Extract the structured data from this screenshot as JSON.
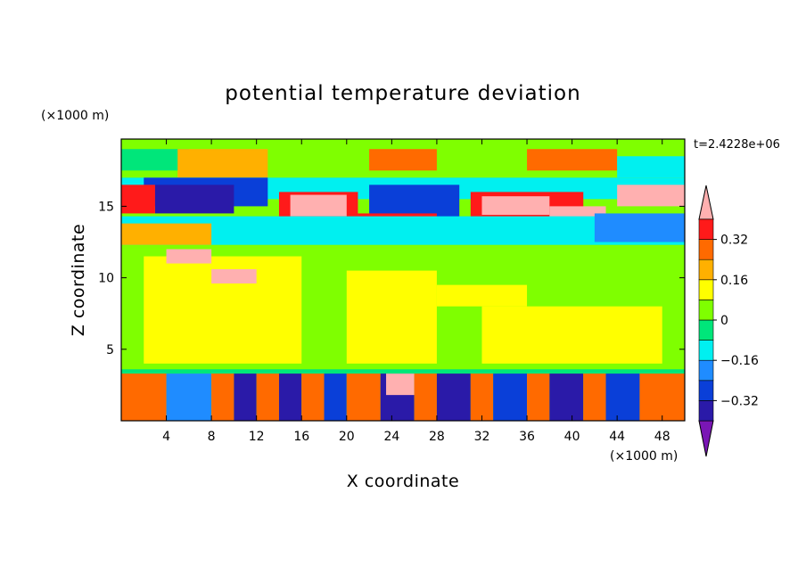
{
  "chart_data": {
    "type": "heatmap",
    "title": "potential temperature deviation",
    "xlabel": "X coordinate",
    "ylabel": "Z coordinate",
    "x_unit": "(×1000 m)",
    "y_unit": "(×1000 m)",
    "time_label": "t=2.4228e+06",
    "xlim": [
      0,
      50
    ],
    "ylim": [
      0,
      19.7
    ],
    "x_ticks": [
      4,
      8,
      12,
      16,
      20,
      24,
      28,
      32,
      36,
      40,
      44,
      48
    ],
    "y_ticks": [
      5,
      10,
      15
    ],
    "colorbar": {
      "levels": [
        -0.4,
        -0.32,
        -0.24,
        -0.16,
        -0.08,
        0,
        0.08,
        0.16,
        0.24,
        0.32,
        0.4
      ],
      "labels": [
        {
          "value": 0.32,
          "text": "0.32"
        },
        {
          "value": 0.16,
          "text": "0.16"
        },
        {
          "value": 0,
          "text": "0"
        },
        {
          "value": -0.16,
          "text": "−0.16"
        },
        {
          "value": -0.32,
          "text": "−0.32"
        }
      ],
      "colors_low_to_high": [
        "#7a16b5",
        "#2a1aa8",
        "#0a3fd8",
        "#1f8cff",
        "#00f0f0",
        "#00e67a",
        "#7fff00",
        "#ffff00",
        "#ffb000",
        "#ff6a00",
        "#ff1a1a",
        "#ffb0b0"
      ],
      "extend": "both"
    },
    "regions": [
      {
        "x0": 0,
        "x1": 50,
        "y0": 12,
        "y1": 19.7,
        "value": 0.04
      },
      {
        "x0": 0,
        "x1": 50,
        "y0": 3.3,
        "y1": 12,
        "value": 0.02
      },
      {
        "x0": 0,
        "x1": 50,
        "y0": 0,
        "y1": 3.3,
        "value": 0.02
      },
      {
        "x0": 2,
        "x1": 16,
        "y0": 4,
        "y1": 11.5,
        "value": 0.09
      },
      {
        "x0": 20,
        "x1": 28,
        "y0": 4,
        "y1": 10.5,
        "value": 0.09
      },
      {
        "x0": 28,
        "x1": 36,
        "y0": 8,
        "y1": 9.5,
        "value": 0.09
      },
      {
        "x0": 32,
        "x1": 48,
        "y0": 4,
        "y1": 8,
        "value": 0.09
      },
      {
        "x0": 0,
        "x1": 50,
        "y0": 3.3,
        "y1": 3.6,
        "value": -0.05
      },
      {
        "x0": 0,
        "x1": 6,
        "y0": 17.5,
        "y1": 19,
        "value": -0.06
      },
      {
        "x0": 5,
        "x1": 13,
        "y0": 17,
        "y1": 19,
        "value": 0.18
      },
      {
        "x0": 22,
        "x1": 28,
        "y0": 17.5,
        "y1": 19,
        "value": 0.25
      },
      {
        "x0": 36,
        "x1": 44,
        "y0": 17.5,
        "y1": 19,
        "value": 0.25
      },
      {
        "x0": 44,
        "x1": 50,
        "y0": 17,
        "y1": 18.5,
        "value": -0.1
      },
      {
        "x0": 0,
        "x1": 50,
        "y0": 15.5,
        "y1": 17,
        "value": -0.12
      },
      {
        "x0": 2,
        "x1": 13,
        "y0": 15,
        "y1": 17,
        "value": -0.3
      },
      {
        "x0": 3,
        "x1": 10,
        "y0": 14.5,
        "y1": 16.5,
        "value": -0.38
      },
      {
        "x0": 22,
        "x1": 30,
        "y0": 14,
        "y1": 16.5,
        "value": -0.3
      },
      {
        "x0": 0,
        "x1": 3,
        "y0": 14.5,
        "y1": 16.5,
        "value": 0.32
      },
      {
        "x0": 14,
        "x1": 21,
        "y0": 14,
        "y1": 16,
        "value": 0.32
      },
      {
        "x0": 15,
        "x1": 20,
        "y0": 14.3,
        "y1": 15.8,
        "value": 0.42
      },
      {
        "x0": 21,
        "x1": 28,
        "y0": 12.4,
        "y1": 14.5,
        "value": 0.32
      },
      {
        "x0": 21.5,
        "x1": 27,
        "y0": 12.7,
        "y1": 14,
        "value": 0.42
      },
      {
        "x0": 31,
        "x1": 41,
        "y0": 14,
        "y1": 16,
        "value": 0.32
      },
      {
        "x0": 32,
        "x1": 38,
        "y0": 14.4,
        "y1": 15.7,
        "value": 0.42
      },
      {
        "x0": 38,
        "x1": 43,
        "y0": 13.5,
        "y1": 15,
        "value": 0.42
      },
      {
        "x0": 44,
        "x1": 50,
        "y0": 15,
        "y1": 16.5,
        "value": 0.42
      },
      {
        "x0": 0,
        "x1": 50,
        "y0": 12.3,
        "y1": 14.3,
        "value": -0.15
      },
      {
        "x0": 42,
        "x1": 50,
        "y0": 12.5,
        "y1": 14.5,
        "value": -0.2
      },
      {
        "x0": 0,
        "x1": 8,
        "y0": 12.3,
        "y1": 13.8,
        "value": 0.2
      },
      {
        "x0": 4,
        "x1": 8,
        "y0": 11,
        "y1": 12,
        "value": 0.42
      },
      {
        "x0": 8,
        "x1": 12,
        "y0": 9.6,
        "y1": 10.6,
        "value": 0.42
      },
      {
        "x0": 0,
        "x1": 4,
        "y0": 0,
        "y1": 3.3,
        "value": 0.25
      },
      {
        "x0": 4,
        "x1": 8,
        "y0": 0,
        "y1": 3.3,
        "value": -0.2
      },
      {
        "x0": 8,
        "x1": 10,
        "y0": 0,
        "y1": 3.3,
        "value": 0.25
      },
      {
        "x0": 10,
        "x1": 12,
        "y0": 0,
        "y1": 3.3,
        "value": -0.34
      },
      {
        "x0": 12,
        "x1": 14,
        "y0": 0,
        "y1": 3.3,
        "value": 0.3
      },
      {
        "x0": 14,
        "x1": 16,
        "y0": 0,
        "y1": 3.3,
        "value": -0.34
      },
      {
        "x0": 16,
        "x1": 18,
        "y0": 0,
        "y1": 3.3,
        "value": 0.3
      },
      {
        "x0": 18,
        "x1": 20,
        "y0": 0,
        "y1": 3.3,
        "value": -0.3
      },
      {
        "x0": 20,
        "x1": 23,
        "y0": 0,
        "y1": 3.3,
        "value": 0.3
      },
      {
        "x0": 23,
        "x1": 26,
        "y0": 0,
        "y1": 3.3,
        "value": -0.34
      },
      {
        "x0": 23.5,
        "x1": 26,
        "y0": 1.8,
        "y1": 3.3,
        "value": 0.42
      },
      {
        "x0": 26,
        "x1": 28,
        "y0": 0,
        "y1": 3.3,
        "value": 0.3
      },
      {
        "x0": 28,
        "x1": 31,
        "y0": 0,
        "y1": 3.3,
        "value": -0.34
      },
      {
        "x0": 31,
        "x1": 33,
        "y0": 0,
        "y1": 3.3,
        "value": 0.3
      },
      {
        "x0": 33,
        "x1": 36,
        "y0": 0,
        "y1": 3.3,
        "value": -0.3
      },
      {
        "x0": 36,
        "x1": 38,
        "y0": 0,
        "y1": 3.3,
        "value": 0.3
      },
      {
        "x0": 38,
        "x1": 41,
        "y0": 0,
        "y1": 3.3,
        "value": -0.34
      },
      {
        "x0": 41,
        "x1": 43,
        "y0": 0,
        "y1": 3.3,
        "value": 0.25
      },
      {
        "x0": 43,
        "x1": 46,
        "y0": 0,
        "y1": 3.3,
        "value": -0.3
      },
      {
        "x0": 46,
        "x1": 50,
        "y0": 0,
        "y1": 3.3,
        "value": 0.28
      }
    ]
  }
}
